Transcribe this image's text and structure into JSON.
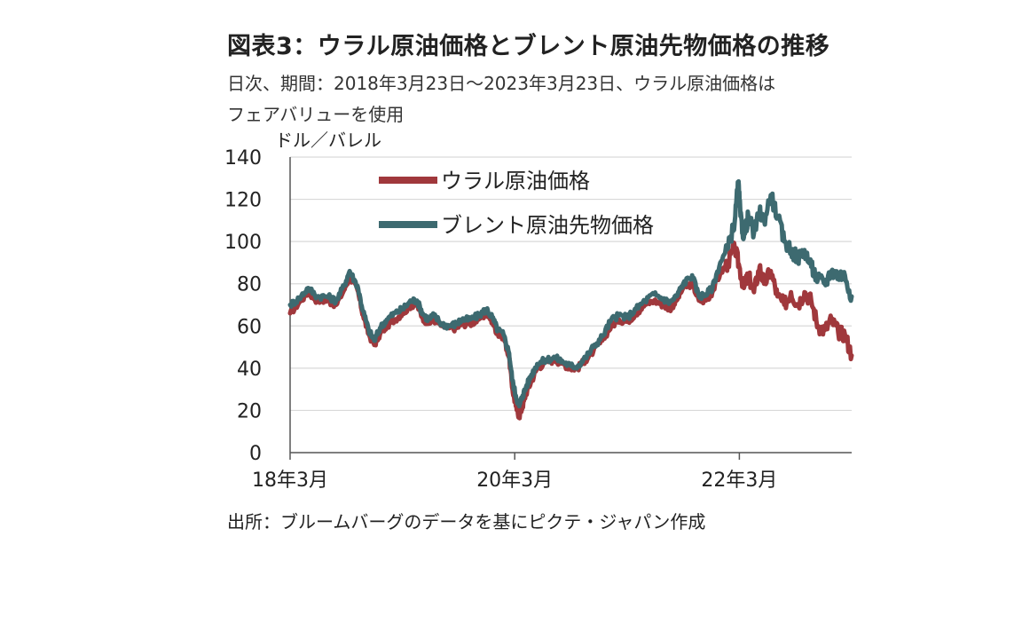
{
  "header": {
    "title": "図表3：ウラル原油価格とブレント原油先物価格の推移",
    "subtitle_line1": "日次、期間：2018年3月23日～2023年3月23日、ウラル原油価格は",
    "subtitle_line2": "フェアバリューを使用"
  },
  "footer": {
    "source": "出所：ブルームバーグのデータを基にピクテ・ジャパン作成"
  },
  "colors": {
    "urals": "#a0383c",
    "brent": "#3d6a70",
    "grid": "#d9d9d9",
    "axis": "#555555"
  },
  "chart_data": {
    "type": "line",
    "title": "図表3：ウラル原油価格とブレント原油先物価格の推移",
    "ylabel": "ドル／バレル",
    "xlabel": "",
    "ylim": [
      0,
      140
    ],
    "yticks": [
      0,
      20,
      40,
      60,
      80,
      100,
      120,
      140
    ],
    "xlim": [
      2018.22,
      2023.22
    ],
    "xticks": [
      {
        "value": 2018.22,
        "label": "18年3月"
      },
      {
        "value": 2020.22,
        "label": "20年3月"
      },
      {
        "value": 2022.22,
        "label": "22年3月"
      }
    ],
    "legend_position": "top-center",
    "series": [
      {
        "name": "ウラル原油価格",
        "color": "#a0383c",
        "points": [
          [
            2018.22,
            66
          ],
          [
            2018.3,
            71
          ],
          [
            2018.38,
            76
          ],
          [
            2018.46,
            72
          ],
          [
            2018.55,
            72
          ],
          [
            2018.63,
            70
          ],
          [
            2018.7,
            77
          ],
          [
            2018.75,
            83
          ],
          [
            2018.82,
            77
          ],
          [
            2018.87,
            65
          ],
          [
            2018.92,
            56
          ],
          [
            2018.97,
            51
          ],
          [
            2019.02,
            56
          ],
          [
            2019.08,
            60
          ],
          [
            2019.15,
            63
          ],
          [
            2019.22,
            66
          ],
          [
            2019.3,
            70
          ],
          [
            2019.35,
            70
          ],
          [
            2019.4,
            64
          ],
          [
            2019.45,
            61
          ],
          [
            2019.5,
            63
          ],
          [
            2019.57,
            60
          ],
          [
            2019.63,
            59
          ],
          [
            2019.7,
            59
          ],
          [
            2019.75,
            61
          ],
          [
            2019.82,
            61
          ],
          [
            2019.9,
            63
          ],
          [
            2019.97,
            66
          ],
          [
            2020.02,
            62
          ],
          [
            2020.07,
            56
          ],
          [
            2020.12,
            55
          ],
          [
            2020.17,
            45
          ],
          [
            2020.2,
            30
          ],
          [
            2020.23,
            22
          ],
          [
            2020.26,
            17
          ],
          [
            2020.29,
            22
          ],
          [
            2020.32,
            28
          ],
          [
            2020.37,
            34
          ],
          [
            2020.42,
            40
          ],
          [
            2020.5,
            43
          ],
          [
            2020.58,
            44
          ],
          [
            2020.65,
            42
          ],
          [
            2020.72,
            40
          ],
          [
            2020.78,
            40
          ],
          [
            2020.85,
            44
          ],
          [
            2020.92,
            48
          ],
          [
            2021.0,
            53
          ],
          [
            2021.08,
            60
          ],
          [
            2021.15,
            63
          ],
          [
            2021.22,
            62
          ],
          [
            2021.3,
            66
          ],
          [
            2021.38,
            70
          ],
          [
            2021.46,
            72
          ],
          [
            2021.54,
            70
          ],
          [
            2021.6,
            68
          ],
          [
            2021.66,
            72
          ],
          [
            2021.72,
            78
          ],
          [
            2021.8,
            80
          ],
          [
            2021.86,
            72
          ],
          [
            2021.92,
            72
          ],
          [
            2021.98,
            76
          ],
          [
            2022.05,
            85
          ],
          [
            2022.12,
            90
          ],
          [
            2022.18,
            97
          ],
          [
            2022.22,
            88
          ],
          [
            2022.26,
            78
          ],
          [
            2022.3,
            84
          ],
          [
            2022.35,
            76
          ],
          [
            2022.4,
            88
          ],
          [
            2022.44,
            80
          ],
          [
            2022.5,
            86
          ],
          [
            2022.56,
            74
          ],
          [
            2022.62,
            70
          ],
          [
            2022.68,
            76
          ],
          [
            2022.74,
            70
          ],
          [
            2022.8,
            76
          ],
          [
            2022.86,
            72
          ],
          [
            2022.92,
            60
          ],
          [
            2022.98,
            58
          ],
          [
            2023.04,
            63
          ],
          [
            2023.1,
            57
          ],
          [
            2023.16,
            56
          ],
          [
            2023.22,
            46
          ]
        ]
      },
      {
        "name": "ブレント原油先物価格",
        "color": "#3d6a70",
        "points": [
          [
            2018.22,
            70
          ],
          [
            2018.3,
            73
          ],
          [
            2018.38,
            78
          ],
          [
            2018.46,
            74
          ],
          [
            2018.55,
            74
          ],
          [
            2018.63,
            72
          ],
          [
            2018.7,
            79
          ],
          [
            2018.75,
            86
          ],
          [
            2018.82,
            79
          ],
          [
            2018.87,
            67
          ],
          [
            2018.92,
            58
          ],
          [
            2018.97,
            53
          ],
          [
            2019.02,
            59
          ],
          [
            2019.08,
            63
          ],
          [
            2019.15,
            66
          ],
          [
            2019.22,
            68
          ],
          [
            2019.3,
            72
          ],
          [
            2019.35,
            72
          ],
          [
            2019.4,
            66
          ],
          [
            2019.45,
            63
          ],
          [
            2019.5,
            65
          ],
          [
            2019.57,
            61
          ],
          [
            2019.63,
            60
          ],
          [
            2019.7,
            61
          ],
          [
            2019.75,
            63
          ],
          [
            2019.82,
            63
          ],
          [
            2019.9,
            65
          ],
          [
            2019.97,
            68
          ],
          [
            2020.02,
            64
          ],
          [
            2020.07,
            58
          ],
          [
            2020.12,
            56
          ],
          [
            2020.17,
            47
          ],
          [
            2020.2,
            34
          ],
          [
            2020.23,
            27
          ],
          [
            2020.26,
            22
          ],
          [
            2020.29,
            27
          ],
          [
            2020.32,
            31
          ],
          [
            2020.37,
            37
          ],
          [
            2020.42,
            42
          ],
          [
            2020.5,
            44
          ],
          [
            2020.58,
            45
          ],
          [
            2020.65,
            43
          ],
          [
            2020.72,
            41
          ],
          [
            2020.78,
            41
          ],
          [
            2020.85,
            45
          ],
          [
            2020.92,
            50
          ],
          [
            2021.0,
            55
          ],
          [
            2021.08,
            63
          ],
          [
            2021.15,
            65
          ],
          [
            2021.22,
            64
          ],
          [
            2021.3,
            68
          ],
          [
            2021.38,
            72
          ],
          [
            2021.46,
            75
          ],
          [
            2021.54,
            73
          ],
          [
            2021.6,
            71
          ],
          [
            2021.66,
            74
          ],
          [
            2021.72,
            80
          ],
          [
            2021.8,
            84
          ],
          [
            2021.86,
            74
          ],
          [
            2021.92,
            75
          ],
          [
            2021.98,
            78
          ],
          [
            2022.05,
            90
          ],
          [
            2022.12,
            97
          ],
          [
            2022.18,
            110
          ],
          [
            2022.21,
            128
          ],
          [
            2022.23,
            112
          ],
          [
            2022.26,
            102
          ],
          [
            2022.3,
            112
          ],
          [
            2022.35,
            104
          ],
          [
            2022.4,
            114
          ],
          [
            2022.44,
            110
          ],
          [
            2022.5,
            122
          ],
          [
            2022.56,
            112
          ],
          [
            2022.62,
            100
          ],
          [
            2022.68,
            96
          ],
          [
            2022.74,
            92
          ],
          [
            2022.8,
            96
          ],
          [
            2022.86,
            88
          ],
          [
            2022.92,
            82
          ],
          [
            2022.98,
            80
          ],
          [
            2023.04,
            86
          ],
          [
            2023.1,
            84
          ],
          [
            2023.16,
            84
          ],
          [
            2023.22,
            74
          ]
        ]
      }
    ]
  }
}
